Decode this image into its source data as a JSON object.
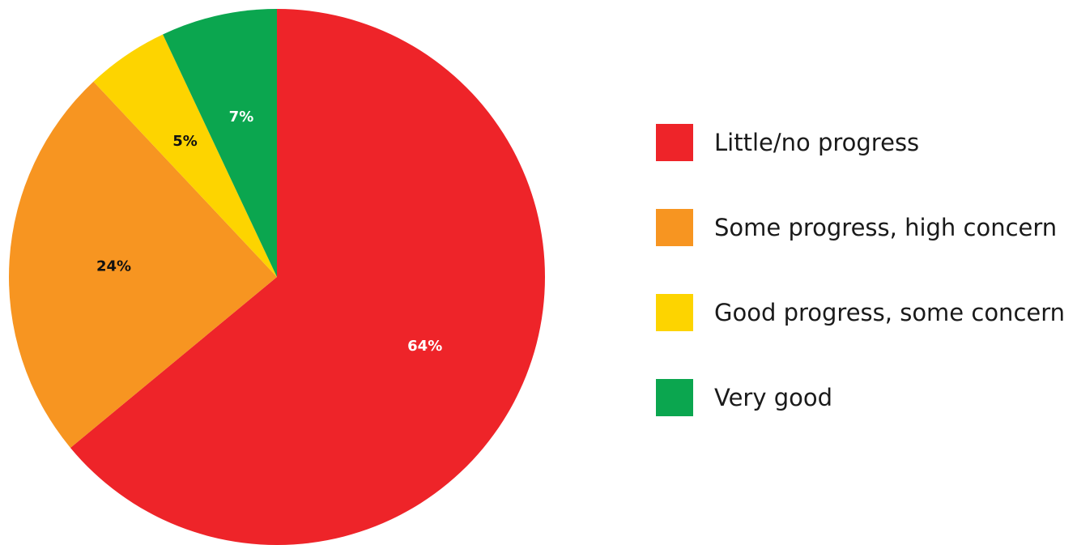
{
  "chart_data": {
    "type": "pie",
    "title": "",
    "start_angle_deg": 0,
    "direction": "clockwise",
    "legend_position": "right",
    "slices": [
      {
        "label": "Little/no progress",
        "value": 64,
        "display": "64%",
        "color": "#ee2429",
        "label_color": "#ffffff"
      },
      {
        "label": "Some progress, high concern",
        "value": 24,
        "display": "24%",
        "color": "#f79521",
        "label_color": "#111111"
      },
      {
        "label": "Good progress, some concern",
        "value": 5,
        "display": "5%",
        "color": "#fdd400",
        "label_color": "#111111"
      },
      {
        "label": "Very good",
        "value": 7,
        "display": "7%",
        "color": "#0ba64f",
        "label_color": "#ffffff"
      }
    ]
  }
}
